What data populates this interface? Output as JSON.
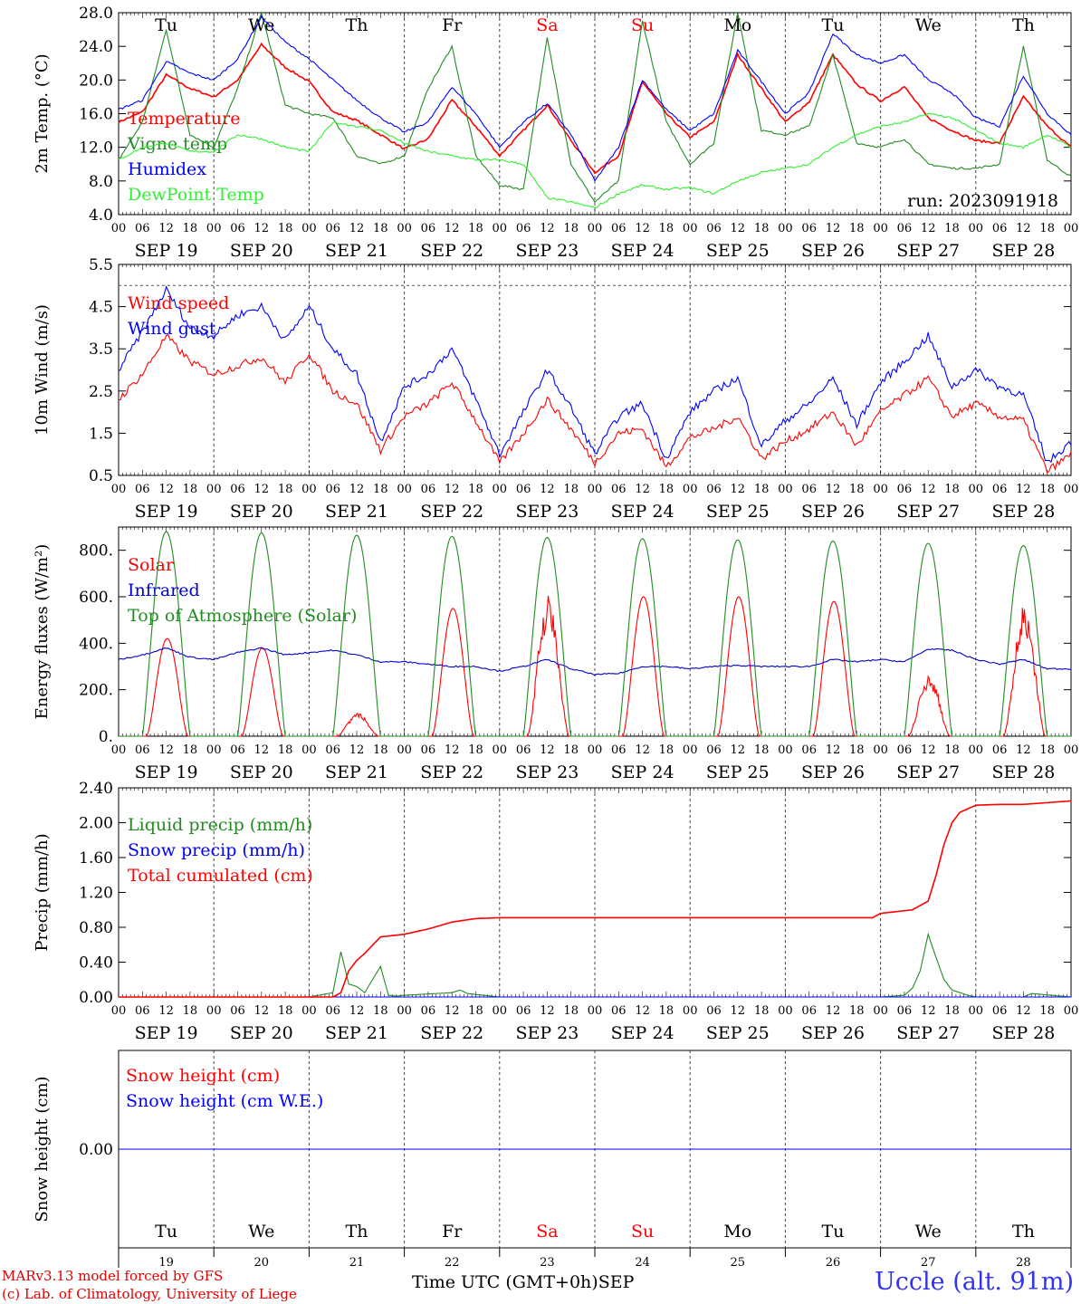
{
  "chart_data": [
    {
      "type": "line",
      "ylabel": "2m Temp. (°C)",
      "ylim": [
        4.0,
        28.0
      ],
      "yticks": [
        "4.0",
        "8.0",
        "12.0",
        "16.0",
        "20.0",
        "24.0",
        "28.0"
      ],
      "x_unit": "hours since SEP 19 00 UTC",
      "annotation": "run: 2023091918",
      "legend_position": "left",
      "series": [
        {
          "name": "Temperature",
          "color": "#ff0000",
          "x": [
            0,
            6,
            12,
            18,
            24,
            30,
            36,
            42,
            48,
            54,
            60,
            66,
            72,
            78,
            84,
            90,
            96,
            102,
            108,
            114,
            120,
            126,
            132,
            138,
            144,
            150,
            156,
            162,
            168,
            174,
            180,
            186,
            192,
            198,
            204,
            210,
            216,
            222,
            228,
            234,
            240
          ],
          "values": [
            15.0,
            16.2,
            20.6,
            19.0,
            18.0,
            20.0,
            24.2,
            21.5,
            19.8,
            16.2,
            15.2,
            13.5,
            11.8,
            13.0,
            17.6,
            14.5,
            11.0,
            14.0,
            17.0,
            12.8,
            9.0,
            11.0,
            19.8,
            16.0,
            13.2,
            15.0,
            23.0,
            19.0,
            15.0,
            17.4,
            23.0,
            19.5,
            17.5,
            19.2,
            15.5,
            14.0,
            12.8,
            12.5,
            18.0,
            14.5,
            12.0
          ]
        },
        {
          "name": "Vigne temp",
          "color": "#228b22",
          "x": [
            0,
            6,
            12,
            18,
            24,
            30,
            36,
            42,
            48,
            54,
            60,
            66,
            72,
            78,
            84,
            90,
            96,
            102,
            108,
            114,
            120,
            126,
            132,
            138,
            144,
            150,
            156,
            162,
            168,
            174,
            180,
            186,
            192,
            198,
            204,
            210,
            216,
            222,
            228,
            234,
            240
          ],
          "values": [
            10.5,
            15.0,
            26.0,
            13.5,
            12.0,
            19.0,
            28.0,
            17.0,
            16.0,
            15.5,
            11.0,
            10.0,
            11.0,
            19.0,
            24.0,
            11.0,
            7.5,
            7.0,
            25.0,
            10.0,
            5.5,
            8.0,
            27.0,
            15.0,
            10.0,
            12.5,
            28.0,
            14.0,
            13.5,
            14.5,
            23.0,
            12.5,
            12.0,
            13.0,
            10.0,
            9.5,
            9.5,
            10.0,
            24.0,
            10.5,
            8.5
          ]
        },
        {
          "name": "Humidex",
          "color": "#0000ff",
          "x": [
            0,
            6,
            12,
            18,
            24,
            30,
            36,
            42,
            48,
            54,
            60,
            66,
            72,
            78,
            84,
            90,
            96,
            102,
            108,
            114,
            120,
            126,
            132,
            138,
            144,
            150,
            156,
            162,
            168,
            174,
            180,
            186,
            192,
            198,
            204,
            210,
            216,
            222,
            228,
            234,
            240
          ],
          "values": [
            16.5,
            17.6,
            22.2,
            20.8,
            20.0,
            22.5,
            27.5,
            24.5,
            22.5,
            20.0,
            17.6,
            15.5,
            13.8,
            15.0,
            19.2,
            16.0,
            12.0,
            15.0,
            17.2,
            13.5,
            8.0,
            12.0,
            20.0,
            16.5,
            14.0,
            16.0,
            23.5,
            19.8,
            16.0,
            18.5,
            25.5,
            23.0,
            22.0,
            23.0,
            20.0,
            18.5,
            15.5,
            14.5,
            20.5,
            16.0,
            13.5
          ]
        },
        {
          "name": "DewPoint Temp",
          "color": "#33ee33",
          "x": [
            0,
            6,
            12,
            18,
            24,
            30,
            36,
            42,
            48,
            54,
            60,
            66,
            72,
            78,
            84,
            90,
            96,
            102,
            108,
            114,
            120,
            126,
            132,
            138,
            144,
            150,
            156,
            162,
            168,
            174,
            180,
            186,
            192,
            198,
            204,
            210,
            216,
            222,
            228,
            234,
            240
          ],
          "values": [
            10.5,
            12.0,
            12.5,
            11.5,
            11.5,
            13.5,
            13.0,
            12.0,
            11.5,
            15.0,
            14.5,
            14.0,
            12.5,
            11.5,
            11.0,
            10.5,
            10.5,
            10.0,
            6.0,
            5.5,
            4.8,
            6.5,
            7.5,
            7.0,
            7.2,
            6.5,
            8.0,
            9.0,
            9.5,
            10.0,
            12.0,
            13.5,
            14.5,
            15.0,
            16.0,
            15.5,
            14.0,
            12.5,
            12.0,
            13.5,
            12.0
          ]
        }
      ]
    },
    {
      "type": "line",
      "ylabel": "10m Wind (m/s)",
      "ylim": [
        0.5,
        5.5
      ],
      "yticks": [
        "0.5",
        "1.5",
        "2.5",
        "3.5",
        "4.5",
        "5.5"
      ],
      "reference_line": 5.0,
      "legend_position": "left",
      "series": [
        {
          "name": "Wind speed",
          "color": "#ff0000",
          "x": [
            0,
            6,
            12,
            18,
            24,
            30,
            36,
            42,
            48,
            54,
            60,
            66,
            72,
            78,
            84,
            90,
            96,
            102,
            108,
            114,
            120,
            126,
            132,
            138,
            144,
            150,
            156,
            162,
            168,
            174,
            180,
            186,
            192,
            198,
            204,
            210,
            216,
            222,
            228,
            234,
            240
          ],
          "values": [
            2.3,
            2.9,
            3.8,
            3.2,
            2.9,
            3.1,
            3.3,
            2.7,
            3.4,
            2.5,
            2.2,
            1.1,
            1.9,
            2.2,
            2.7,
            1.8,
            0.8,
            1.5,
            2.3,
            1.6,
            0.8,
            1.5,
            1.6,
            0.7,
            1.4,
            1.6,
            1.9,
            0.9,
            1.3,
            1.6,
            2.0,
            1.2,
            2.0,
            2.4,
            2.8,
            1.9,
            2.2,
            1.9,
            1.8,
            0.6,
            1.0
          ]
        },
        {
          "name": "Wind gust",
          "color": "#0000ff",
          "x": [
            0,
            6,
            12,
            18,
            24,
            30,
            36,
            42,
            48,
            54,
            60,
            66,
            72,
            78,
            84,
            90,
            96,
            102,
            108,
            114,
            120,
            126,
            132,
            138,
            144,
            150,
            156,
            162,
            168,
            174,
            180,
            186,
            192,
            198,
            204,
            210,
            216,
            222,
            228,
            234,
            240
          ],
          "values": [
            3.0,
            3.9,
            4.9,
            4.0,
            3.8,
            4.3,
            4.5,
            3.7,
            4.5,
            3.5,
            2.9,
            1.3,
            2.6,
            2.9,
            3.5,
            2.3,
            1.0,
            2.0,
            3.0,
            2.1,
            1.0,
            1.9,
            2.2,
            0.9,
            2.0,
            2.5,
            2.8,
            1.2,
            1.8,
            2.2,
            2.8,
            1.7,
            2.7,
            3.2,
            3.8,
            2.6,
            3.0,
            2.6,
            2.4,
            0.8,
            1.3
          ]
        }
      ]
    },
    {
      "type": "line",
      "ylabel": "Energy fluxes (W/m²)",
      "ylim": [
        0,
        900
      ],
      "yticks": [
        "0.",
        "200.",
        "400.",
        "600.",
        "800."
      ],
      "legend_position": "left",
      "series": [
        {
          "name": "Solar",
          "color": "#ff0000",
          "peaks": [
            420,
            380,
            100,
            550,
            610,
            600,
            600,
            580,
            270,
            570
          ]
        },
        {
          "name": "Infrared",
          "color": "#0000cc",
          "x": [
            0,
            6,
            12,
            18,
            24,
            30,
            36,
            42,
            48,
            54,
            60,
            66,
            72,
            78,
            84,
            90,
            96,
            102,
            108,
            114,
            120,
            126,
            132,
            138,
            144,
            150,
            156,
            162,
            168,
            174,
            180,
            186,
            192,
            198,
            204,
            210,
            216,
            222,
            228,
            234,
            240
          ],
          "values": [
            330,
            350,
            380,
            340,
            330,
            360,
            380,
            350,
            360,
            370,
            350,
            320,
            320,
            310,
            300,
            300,
            280,
            300,
            330,
            290,
            265,
            270,
            300,
            300,
            290,
            300,
            305,
            300,
            300,
            300,
            330,
            320,
            330,
            320,
            375,
            370,
            330,
            310,
            330,
            290,
            290
          ]
        },
        {
          "name": "Top of Atmosphere (Solar)",
          "color": "#228b22",
          "peaks": [
            880,
            875,
            865,
            860,
            855,
            850,
            845,
            840,
            830,
            820
          ]
        }
      ]
    },
    {
      "type": "line",
      "ylabel": "Precip (mm/h)",
      "ylim": [
        0,
        2.4
      ],
      "yticks": [
        "0.00",
        "0.40",
        "0.80",
        "1.20",
        "1.60",
        "2.00",
        "2.40"
      ],
      "legend_position": "left",
      "series": [
        {
          "name": "Liquid precip (mm/h)",
          "color": "#228b22",
          "x": [
            0,
            48,
            54,
            56,
            58,
            60,
            62,
            66,
            68,
            70,
            72,
            84,
            86,
            88,
            96,
            192,
            198,
            200,
            202,
            204,
            206,
            208,
            210,
            212,
            214,
            216,
            228,
            230,
            240
          ],
          "values": [
            0,
            0,
            0.05,
            0.52,
            0.15,
            0.12,
            0.05,
            0.35,
            0.02,
            0.01,
            0.02,
            0.05,
            0.08,
            0.04,
            0,
            0,
            0.02,
            0.1,
            0.3,
            0.72,
            0.45,
            0.2,
            0.08,
            0.05,
            0.02,
            0,
            0,
            0.04,
            0
          ]
        },
        {
          "name": "Snow precip (mm/h)",
          "color": "#0000ff",
          "x": [
            0,
            240
          ],
          "values": [
            0,
            0
          ]
        },
        {
          "name": "Total cumulated (cm)",
          "color": "#ff0000",
          "x": [
            0,
            54,
            56,
            58,
            60,
            62,
            66,
            72,
            78,
            84,
            90,
            96,
            144,
            190,
            192,
            200,
            204,
            206,
            208,
            210,
            212,
            216,
            222,
            228,
            240
          ],
          "values": [
            0,
            0,
            0.05,
            0.3,
            0.42,
            0.5,
            0.69,
            0.72,
            0.78,
            0.86,
            0.9,
            0.91,
            0.91,
            0.91,
            0.96,
            1.0,
            1.1,
            1.4,
            1.75,
            2.0,
            2.12,
            2.2,
            2.21,
            2.21,
            2.25
          ]
        }
      ]
    },
    {
      "type": "line",
      "ylabel": "Snow height (cm)",
      "ylim": [
        -1,
        1
      ],
      "yticks": [
        "0.00"
      ],
      "legend_position": "left",
      "series": [
        {
          "name": "Snow height (cm)",
          "color": "#ff0000",
          "x": [
            0,
            240
          ],
          "values": [
            0,
            0
          ]
        },
        {
          "name": "Snow height (cm W.E.)",
          "color": "#0000ff",
          "x": [
            0,
            240
          ],
          "values": [
            0,
            0
          ]
        }
      ]
    }
  ],
  "days": [
    "Tu",
    "We",
    "Th",
    "Fr",
    "Sa",
    "Su",
    "Mo",
    "Tu",
    "We",
    "Th"
  ],
  "weekend_color": "#ff0000",
  "dates": [
    "SEP 19",
    "SEP 20",
    "SEP 21",
    "SEP 22",
    "SEP 23",
    "SEP 24",
    "SEP 25",
    "SEP 26",
    "SEP 27",
    "SEP 28"
  ],
  "day_numbers": [
    "19",
    "20",
    "21",
    "22",
    "23",
    "24",
    "25",
    "26",
    "27",
    "28"
  ],
  "hour_ticks": [
    "00",
    "06",
    "12",
    "18"
  ],
  "xlabel": "Time UTC (GMT+0h)",
  "month": "SEP",
  "credit_line1": "MARv3.13 model forced by GFS",
  "credit_line2": "(c) Lab. of Climatology, University of Liege",
  "station": "Uccle (alt. 91m)"
}
